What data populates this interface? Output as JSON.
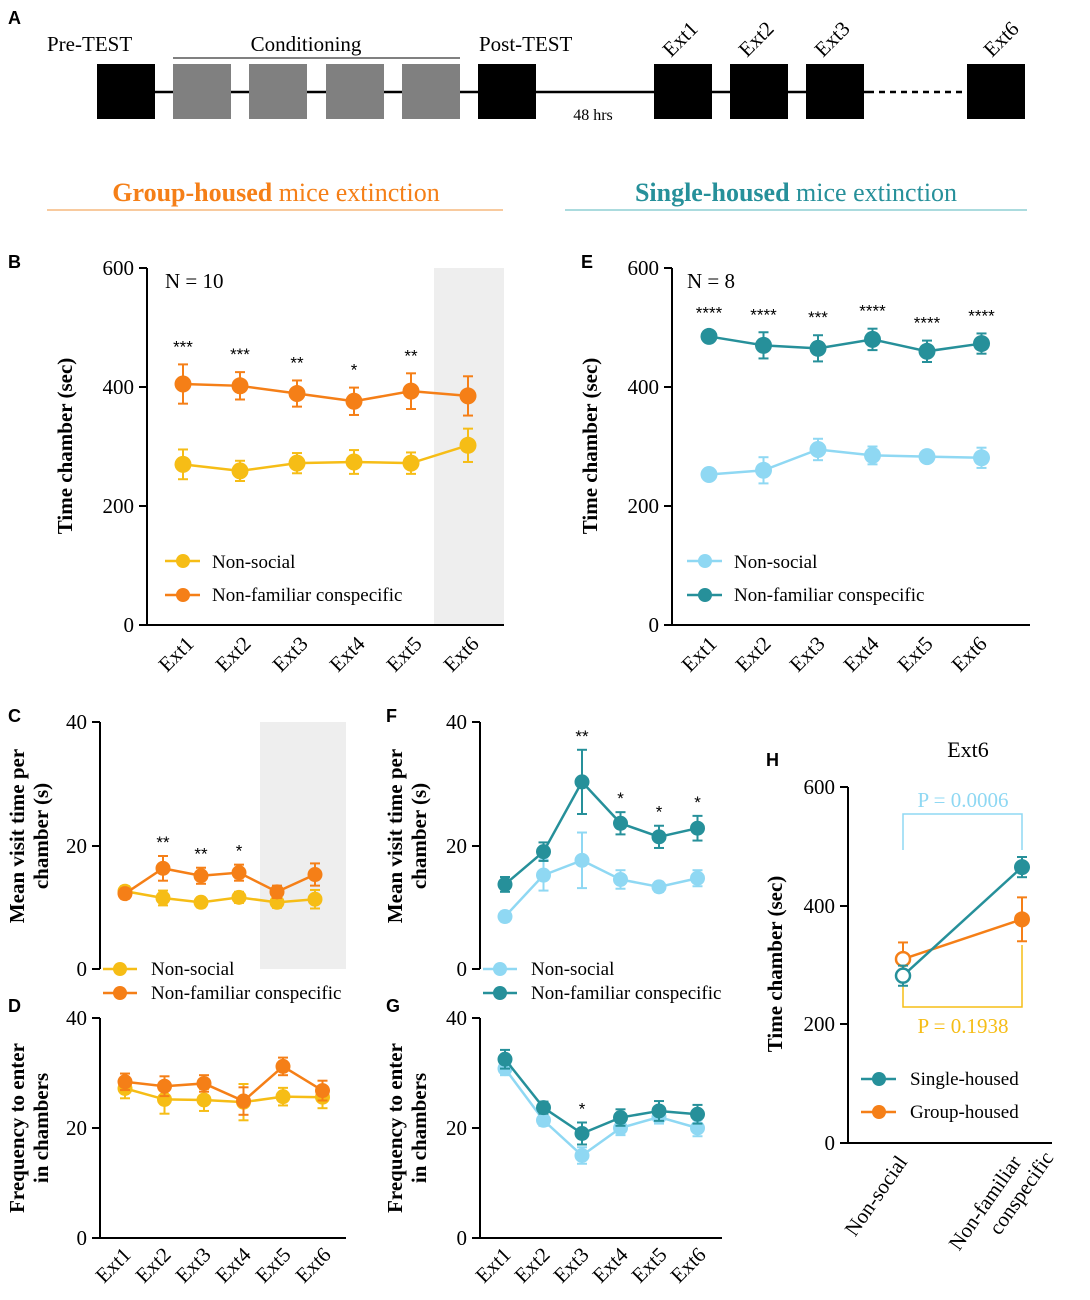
{
  "colors": {
    "orange": "#f57f17",
    "yellow": "#f6bd16",
    "teal": "#26909a",
    "lightblue": "#8fd8f3",
    "grey": "#808080",
    "shade": "#eeeeee"
  },
  "protocol": {
    "panel_label": "A",
    "pre_test": "Pre-TEST",
    "conditioning": "Conditioning",
    "post_test": "Post-TEST",
    "delay": "48 hrs",
    "ext_labels": [
      "Ext1",
      "Ext2",
      "Ext3",
      "Ext6"
    ]
  },
  "headers": {
    "group": {
      "bold": "Group-housed",
      "rest": " mice extinction"
    },
    "single": {
      "bold": "Single-housed",
      "rest": " mice extinction"
    }
  },
  "legend": {
    "non_social": "Non-social",
    "conspecific": "Non-familiar conspecific",
    "single_housed": "Single-housed",
    "group_housed": "Group-housed"
  },
  "chart_data": [
    {
      "id": "B",
      "type": "line",
      "panel_label": "B",
      "ylabel": "Time chamber (sec)",
      "ylim": [
        0,
        600
      ],
      "yticks": [
        "0",
        "200",
        "400",
        "600"
      ],
      "categories": [
        "Ext1",
        "Ext2",
        "Ext3",
        "Ext4",
        "Ext5",
        "Ext6"
      ],
      "annotation": "N = 10",
      "shaded_category": "Ext6",
      "series": [
        {
          "name": "Non-social",
          "values": [
            270,
            259,
            272,
            274,
            272,
            302
          ],
          "errors": [
            25,
            17,
            17,
            20,
            18,
            28
          ]
        },
        {
          "name": "Non-familiar conspecific",
          "values": [
            405,
            402,
            389,
            376,
            393,
            385
          ],
          "errors": [
            33,
            23,
            22,
            23,
            30,
            33
          ]
        }
      ],
      "stars": [
        "***",
        "***",
        "**",
        "*",
        "**",
        ""
      ]
    },
    {
      "id": "E",
      "type": "line",
      "panel_label": "E",
      "ylabel": "Time chamber (sec)",
      "ylim": [
        0,
        600
      ],
      "yticks": [
        "0",
        "200",
        "400",
        "600"
      ],
      "categories": [
        "Ext1",
        "Ext2",
        "Ext3",
        "Ext4",
        "Ext5",
        "Ext6"
      ],
      "annotation": "N = 8",
      "series": [
        {
          "name": "Non-social",
          "values": [
            253,
            260,
            295,
            285,
            283,
            281
          ],
          "errors": [
            7,
            22,
            18,
            15,
            10,
            17
          ]
        },
        {
          "name": "Non-familiar conspecific",
          "values": [
            485,
            470,
            465,
            480,
            460,
            473
          ],
          "errors": [
            10,
            22,
            22,
            18,
            18,
            17
          ]
        }
      ],
      "stars": [
        "****",
        "****",
        "***",
        "****",
        "****",
        "****"
      ]
    },
    {
      "id": "C",
      "type": "line",
      "panel_label": "C",
      "ylabel": "Mean visit time per chamber (s)",
      "ylim": [
        0,
        40
      ],
      "yticks": [
        "0",
        "20",
        "40"
      ],
      "categories": [
        "Ext1",
        "Ext2",
        "Ext3",
        "Ext4",
        "Ext5",
        "Ext6"
      ],
      "shaded_category": "Ext5-Ext6",
      "series": [
        {
          "name": "Non-social",
          "values": [
            12.6,
            11.5,
            10.8,
            11.6,
            10.8,
            11.3
          ],
          "errors": [
            0.8,
            1.2,
            0.8,
            0.9,
            0.9,
            1.5
          ]
        },
        {
          "name": "Non-familiar conspecific",
          "values": [
            12.2,
            16.3,
            15.1,
            15.6,
            12.5,
            15.3
          ],
          "errors": [
            0.8,
            2.0,
            1.3,
            1.3,
            1.0,
            1.8
          ]
        }
      ],
      "stars": [
        "",
        "**",
        "**",
        "*",
        "",
        ""
      ]
    },
    {
      "id": "F",
      "type": "line",
      "panel_label": "F",
      "ylabel": "Mean visit time per chamber (s)",
      "ylim": [
        0,
        40
      ],
      "yticks": [
        "0",
        "20",
        "40"
      ],
      "categories": [
        "Ext1",
        "Ext2",
        "Ext3",
        "Ext4",
        "Ext5",
        "Ext6"
      ],
      "series": [
        {
          "name": "Non-social",
          "values": [
            8.5,
            15.2,
            17.6,
            14.5,
            13.3,
            14.7
          ],
          "errors": [
            0.8,
            2.5,
            4.5,
            1.5,
            0.8,
            1.3
          ]
        },
        {
          "name": "Non-familiar conspecific",
          "values": [
            13.7,
            19.0,
            30.3,
            23.6,
            21.4,
            22.8
          ],
          "errors": [
            1.2,
            1.5,
            5.2,
            1.8,
            1.8,
            2.0
          ]
        }
      ],
      "stars": [
        "",
        "",
        "**",
        "*",
        "*",
        "*"
      ]
    },
    {
      "id": "D",
      "type": "line",
      "panel_label": "D",
      "ylabel": "Frequency to enter in chambers",
      "ylim": [
        0,
        40
      ],
      "yticks": [
        "0",
        "20",
        "40"
      ],
      "categories": [
        "Ext1",
        "Ext2",
        "Ext3",
        "Ext4",
        "Ext5",
        "Ext6"
      ],
      "series": [
        {
          "name": "Non-social",
          "values": [
            27.2,
            25.2,
            25.1,
            24.7,
            25.7,
            25.6
          ],
          "errors": [
            1.8,
            2.6,
            2.0,
            3.3,
            1.6,
            2.0
          ]
        },
        {
          "name": "Non-familiar conspecific",
          "values": [
            28.4,
            27.6,
            28.1,
            24.9,
            31.2,
            26.8
          ],
          "errors": [
            1.5,
            1.8,
            1.5,
            2.5,
            1.6,
            1.8
          ]
        }
      ],
      "stars": [
        "",
        "",
        "",
        "",
        "",
        ""
      ]
    },
    {
      "id": "G",
      "type": "line",
      "panel_label": "G",
      "ylabel": "Frequency to enter in chambers",
      "ylim": [
        0,
        40
      ],
      "yticks": [
        "0",
        "20",
        "40"
      ],
      "categories": [
        "Ext1",
        "Ext2",
        "Ext3",
        "Ext4",
        "Ext5",
        "Ext6"
      ],
      "series": [
        {
          "name": "Non-social",
          "values": [
            30.8,
            21.4,
            15.0,
            20.0,
            22.0,
            20.0
          ],
          "errors": [
            1.2,
            1.0,
            1.5,
            1.3,
            1.2,
            1.5
          ]
        },
        {
          "name": "Non-familiar conspecific",
          "values": [
            32.5,
            23.7,
            19.0,
            21.9,
            23.1,
            22.5
          ],
          "errors": [
            1.7,
            1.1,
            2.0,
            1.5,
            1.8,
            1.7
          ]
        }
      ],
      "stars": [
        "",
        "",
        "*",
        "",
        "",
        ""
      ]
    },
    {
      "id": "H",
      "type": "line",
      "panel_label": "H",
      "title": "Ext6",
      "ylabel": "Time chamber (sec)",
      "ylim": [
        0,
        600
      ],
      "yticks": [
        "0",
        "200",
        "400",
        "600"
      ],
      "categories": [
        "Non-social",
        "Non-familiar conspecific"
      ],
      "series": [
        {
          "name": "Single-housed",
          "values": [
            282,
            465
          ],
          "errors": [
            17,
            17
          ]
        },
        {
          "name": "Group-housed",
          "values": [
            310,
            377
          ],
          "errors": [
            28,
            37
          ]
        }
      ],
      "p_values": {
        "single": "P = 0.0006",
        "group": "P = 0.1938"
      }
    }
  ]
}
